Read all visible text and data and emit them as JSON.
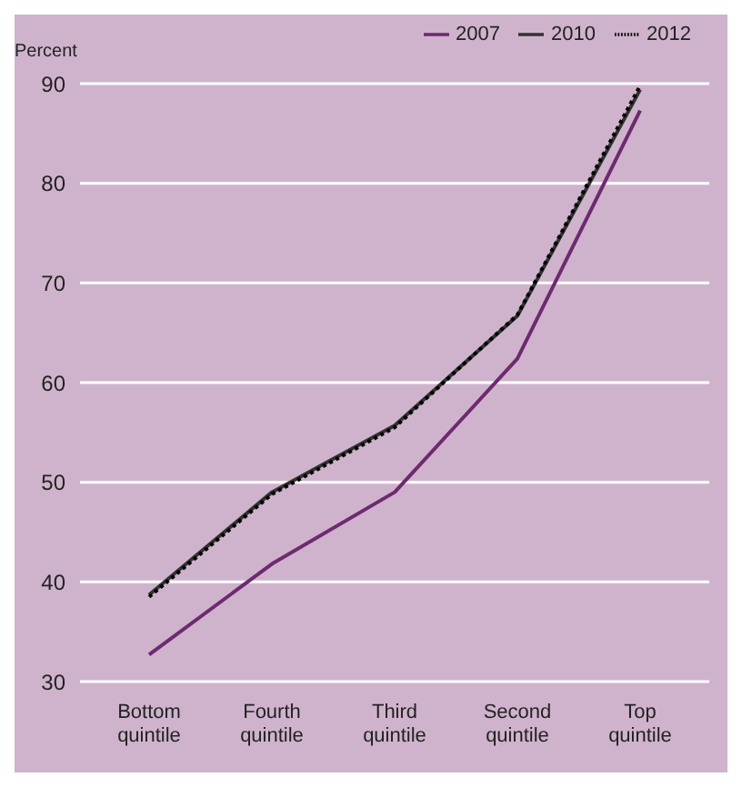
{
  "chart_data": {
    "type": "line",
    "ylabel": "Percent",
    "categories": [
      "Bottom quintile",
      "Fourth quintile",
      "Third quintile",
      "Second quintile",
      "Top quintile"
    ],
    "series": [
      {
        "name": "2007",
        "color": "#6e2a70",
        "values": [
          32.7,
          41.8,
          49,
          62.4,
          87.3
        ]
      },
      {
        "name": "2010",
        "color": "#333333",
        "values": [
          38.7,
          49,
          55.7,
          66.7,
          89.4
        ]
      },
      {
        "name": "2012",
        "color": "#000000",
        "values": [
          38.5,
          48.8,
          55.5,
          66.8,
          89.8
        ],
        "line_style": "dotted"
      }
    ],
    "ylim": [
      30,
      90
    ],
    "yticks": [
      30,
      40,
      50,
      60,
      70,
      80,
      90
    ],
    "grid": "y",
    "legend": "top right",
    "marker": "none",
    "line_style": "solid"
  }
}
